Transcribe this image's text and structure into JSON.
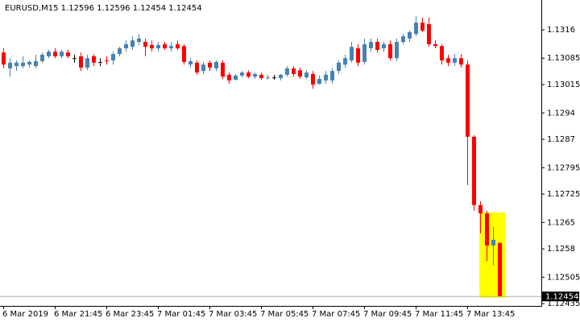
{
  "chart_data": {
    "type": "candlestick",
    "title": "EURUSD,M15  1.12596 1.12596 1.12454 1.12454",
    "categories": [
      "6 Mar 2019",
      null,
      null,
      null,
      null,
      null,
      null,
      null,
      "6 Mar 21:45",
      null,
      null,
      null,
      null,
      null,
      null,
      null,
      "6 Mar 23:45",
      null,
      null,
      null,
      null,
      null,
      null,
      null,
      "7 Mar 01:45",
      null,
      null,
      null,
      null,
      null,
      null,
      null,
      "7 Mar 03:45",
      null,
      null,
      null,
      null,
      null,
      null,
      null,
      "7 Mar 05:45",
      null,
      null,
      null,
      null,
      null,
      null,
      null,
      "7 Mar 07:45",
      null,
      null,
      null,
      null,
      null,
      null,
      null,
      "7 Mar 09:45",
      null,
      null,
      null,
      null,
      null,
      null,
      null,
      "7 Mar 11:45",
      null,
      null,
      null,
      null,
      null,
      null,
      null,
      "7 Mar 13:45",
      null,
      null,
      null,
      null,
      null
    ],
    "open": [
      1.131,
      1.13058,
      1.13064,
      1.13064,
      1.13068,
      1.13064,
      1.13077,
      1.1309,
      1.13102,
      1.1309,
      1.131,
      1.13085,
      1.1309,
      1.1306,
      1.1309,
      1.13075,
      1.13079,
      1.13079,
      1.13096,
      1.13111,
      1.13115,
      1.13128,
      1.13128,
      1.1312,
      1.13111,
      1.13122,
      1.13111,
      1.13122,
      1.13117,
      1.13068,
      1.13073,
      1.13051,
      1.13073,
      1.13058,
      1.13073,
      1.13041,
      1.13028,
      1.13039,
      1.13047,
      1.13036,
      1.13041,
      1.13032,
      1.13034,
      1.13032,
      1.13041,
      1.13058,
      1.13053,
      1.13034,
      1.13043,
      1.13017,
      1.13026,
      1.13026,
      1.13051,
      1.13068,
      1.13079,
      1.13111,
      1.13075,
      1.13111,
      1.13128,
      1.13111,
      1.13122,
      1.13085,
      1.13128,
      1.13137,
      1.13149,
      1.13179,
      1.13175,
      1.13122,
      1.13117,
      1.13085,
      1.13073,
      1.13085,
      1.13068,
      1.12877,
      1.12696,
      1.12674,
      1.12589,
      1.12596
    ],
    "high": [
      1.13111,
      1.13085,
      1.13079,
      1.1309,
      1.13079,
      1.13094,
      1.131,
      1.13107,
      1.13111,
      1.13107,
      1.13107,
      1.13094,
      1.131,
      1.13094,
      1.13096,
      1.13085,
      1.1309,
      1.13102,
      1.13115,
      1.13132,
      1.13143,
      1.13149,
      1.13137,
      1.13132,
      1.13128,
      1.13128,
      1.13128,
      1.13132,
      1.13122,
      1.13085,
      1.13079,
      1.13075,
      1.13079,
      1.13079,
      1.13079,
      1.13047,
      1.13043,
      1.13051,
      1.13053,
      1.13047,
      1.13047,
      1.13041,
      1.13041,
      1.13043,
      1.13064,
      1.13064,
      1.1306,
      1.13053,
      1.13051,
      1.13039,
      1.13051,
      1.13058,
      1.13079,
      1.13094,
      1.13128,
      1.13122,
      1.13137,
      1.13137,
      1.13137,
      1.13128,
      1.13132,
      1.13137,
      1.13149,
      1.13158,
      1.13196,
      1.13192,
      1.13192,
      1.13132,
      1.13122,
      1.13094,
      1.13096,
      1.13096,
      1.13079,
      1.12881,
      1.12706,
      1.12681,
      1.12638,
      1.12596
    ],
    "low": [
      1.13058,
      1.13036,
      1.13051,
      1.13058,
      1.1306,
      1.13058,
      1.13073,
      1.13085,
      1.13085,
      1.13085,
      1.13085,
      1.13073,
      1.13051,
      1.13053,
      1.13064,
      1.13064,
      1.13068,
      1.13068,
      1.1309,
      1.13102,
      1.13107,
      1.1312,
      1.1309,
      1.13102,
      1.13102,
      1.13107,
      1.13102,
      1.13107,
      1.13068,
      1.1306,
      1.13041,
      1.13043,
      1.13051,
      1.13051,
      1.1303,
      1.13017,
      1.13026,
      1.13034,
      1.13032,
      1.1303,
      1.13028,
      1.13028,
      1.13028,
      1.13026,
      1.13036,
      1.13036,
      1.1303,
      1.1303,
      1.13004,
      1.13015,
      1.13017,
      1.13017,
      1.13043,
      1.1306,
      1.13073,
      1.13064,
      1.13068,
      1.13102,
      1.131,
      1.13102,
      1.13079,
      1.13077,
      1.13122,
      1.13128,
      1.13143,
      1.13154,
      1.13115,
      1.13111,
      1.13068,
      1.13064,
      1.13064,
      1.1306,
      1.12749,
      1.12681,
      1.12621,
      1.12547,
      1.12536,
      1.12454
    ],
    "close": [
      1.13068,
      1.13073,
      1.13073,
      1.13073,
      1.13075,
      1.13077,
      1.13094,
      1.13102,
      1.1309,
      1.13102,
      1.1309,
      1.13085,
      1.1306,
      1.13085,
      1.13073,
      1.13075,
      1.13077,
      1.13096,
      1.13111,
      1.13122,
      1.13132,
      1.13137,
      1.13115,
      1.13111,
      1.1312,
      1.13111,
      1.13117,
      1.13111,
      1.13075,
      1.13077,
      1.13047,
      1.13068,
      1.1306,
      1.13075,
      1.13036,
      1.13026,
      1.13039,
      1.13047,
      1.13036,
      1.13043,
      1.13032,
      1.13034,
      1.13034,
      1.13041,
      1.13058,
      1.13043,
      1.13036,
      1.13047,
      1.13015,
      1.1303,
      1.13041,
      1.13051,
      1.13073,
      1.13085,
      1.13115,
      1.13073,
      1.13122,
      1.13128,
      1.13107,
      1.13122,
      1.13085,
      1.13128,
      1.13143,
      1.13154,
      1.13179,
      1.13158,
      1.13122,
      1.13117,
      1.13079,
      1.13073,
      1.13085,
      1.13068,
      1.12877,
      1.12696,
      1.12674,
      1.12589,
      1.12604,
      1.12454
    ],
    "up_color": "#4682b4",
    "down_color": "#ff0000",
    "flat_color": "#000000",
    "ylim": [
      1.12429,
      1.13239
    ],
    "yticks": [
      1.1316,
      1.13085,
      1.13015,
      1.1294,
      1.1287,
      1.12795,
      1.12725,
      1.1265,
      1.1258,
      1.12505,
      1.12435
    ],
    "current_price": 1.12454
  }
}
